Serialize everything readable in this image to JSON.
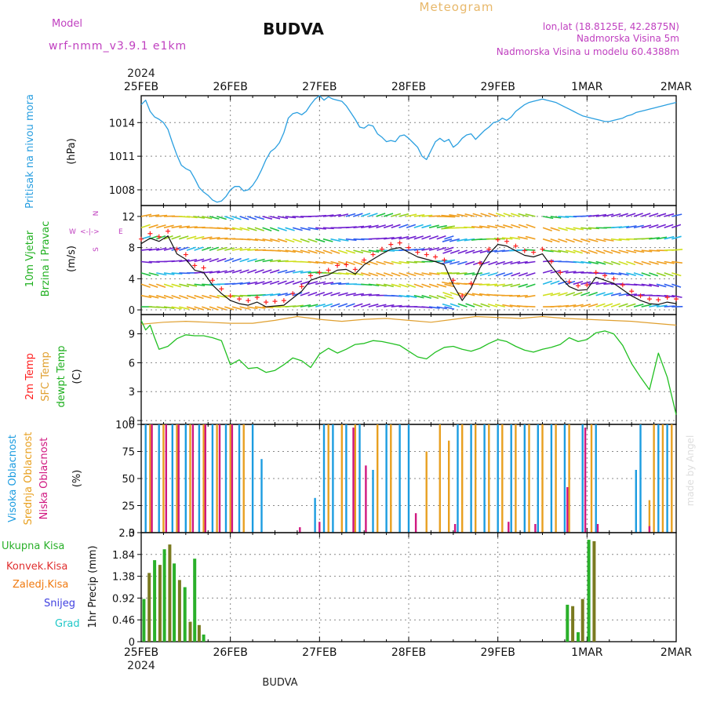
{
  "header": {
    "model_label": "Model",
    "model_name": "wrf-nmm_v3.9.1 e1km",
    "location": "BUDVA",
    "meteogram_label": "Meteogram",
    "coords": "lon,lat (18.8125E, 42.2875N)",
    "elevation": "Nadmorska Visina 5m",
    "model_elevation": "Nadmorska Visina u modelu 60.4388m",
    "footer_location": "BUDVA",
    "credit": "made by Angel"
  },
  "colors": {
    "pressure": "#2a9fe0",
    "sfc_temp": "#e0a030",
    "dew_temp": "#22c022",
    "temp2m": "#ff2020",
    "high_cloud": "#1c9ce0",
    "mid_cloud": "#e8a020",
    "low_cloud": "#d01880",
    "precip_total": "#2ab02a",
    "precip_conv": "#e03030",
    "precip_frozen": "#f07a10",
    "precip_snow": "#4040e0",
    "precip_grad": "#20c8c8",
    "model_label": "#c040c0",
    "meteogram_label": "#e8b86a",
    "header_info": "#c040c0"
  },
  "chart_data": [
    {
      "type": "line",
      "panel": "pressure",
      "ylabel_lines": [
        "Pritisak na nivou mora",
        "(hPa)"
      ],
      "yticks": [
        1008,
        1011,
        1014
      ],
      "ylim": [
        1006.6,
        1016.4
      ],
      "x_top_year": "2024",
      "x_top_labels": [
        "25FEB",
        "26FEB",
        "27FEB",
        "28FEB",
        "29FEB",
        "1MAR",
        "2MAR"
      ],
      "x_days": [
        0,
        6
      ],
      "series": [
        {
          "x": [
            0,
            0.05,
            0.1,
            0.15,
            0.2,
            0.25,
            0.3,
            0.35,
            0.4,
            0.45,
            0.5,
            0.55,
            0.6,
            0.65,
            0.7,
            0.75,
            0.8,
            0.85,
            0.9,
            0.95,
            1.0,
            1.05,
            1.1,
            1.15,
            1.2,
            1.25,
            1.3,
            1.35,
            1.4,
            1.45,
            1.5,
            1.55,
            1.6,
            1.65,
            1.7,
            1.75,
            1.8,
            1.85,
            1.9,
            1.95,
            2.0,
            2.05,
            2.1,
            2.15,
            2.2,
            2.25,
            2.3,
            2.35,
            2.4,
            2.45,
            2.5,
            2.55,
            2.6,
            2.65,
            2.7,
            2.75,
            2.8,
            2.85,
            2.9,
            2.95,
            3.0,
            3.05,
            3.1,
            3.15,
            3.2,
            3.25,
            3.3,
            3.35,
            3.4,
            3.45,
            3.5,
            3.55,
            3.6,
            3.65,
            3.7,
            3.75,
            3.8,
            3.85,
            3.9,
            3.95,
            4.0,
            4.05,
            4.1,
            4.15,
            4.2,
            4.25,
            4.3,
            4.35,
            4.4,
            4.45,
            4.5,
            4.55,
            4.6,
            4.65,
            4.7,
            4.75,
            4.8,
            4.85,
            4.9,
            4.95,
            5.0,
            5.05,
            5.1,
            5.15,
            5.2,
            5.25,
            5.3,
            5.35,
            5.4,
            5.45,
            5.5,
            5.55,
            5.6,
            5.65,
            5.7,
            5.75,
            5.8,
            5.85,
            5.9,
            5.95,
            6.0
          ],
          "values": [
            1015.6,
            1016.0,
            1015.0,
            1014.5,
            1014.3,
            1014.0,
            1013.4,
            1012.2,
            1011.1,
            1010.2,
            1009.9,
            1009.7,
            1009.0,
            1008.2,
            1007.8,
            1007.5,
            1007.1,
            1006.9,
            1007.0,
            1007.4,
            1008.0,
            1008.3,
            1008.3,
            1007.9,
            1008.0,
            1008.4,
            1009.0,
            1009.8,
            1010.7,
            1011.4,
            1011.7,
            1012.2,
            1013.1,
            1014.4,
            1014.8,
            1014.9,
            1014.7,
            1015.0,
            1015.6,
            1016.1,
            1016.4,
            1016.0,
            1016.3,
            1016.1,
            1016.0,
            1015.9,
            1015.5,
            1014.9,
            1014.3,
            1013.6,
            1013.5,
            1013.8,
            1013.7,
            1013.0,
            1012.7,
            1012.3,
            1012.4,
            1012.3,
            1012.8,
            1012.9,
            1012.6,
            1012.2,
            1011.8,
            1011.0,
            1010.7,
            1011.5,
            1012.3,
            1012.6,
            1012.3,
            1012.5,
            1011.8,
            1012.1,
            1012.6,
            1012.9,
            1013.0,
            1012.5,
            1012.9,
            1013.3,
            1013.6,
            1014.0,
            1014.1,
            1014.4,
            1014.2,
            1014.5,
            1015.0,
            1015.3,
            1015.6,
            1015.8,
            1015.9,
            1016.0,
            1016.1,
            1016.0,
            1015.9,
            1015.8,
            1015.6,
            1015.4,
            1015.2,
            1015.0,
            1014.8,
            1014.6,
            1014.5,
            1014.4,
            1014.3,
            1014.2,
            1014.1,
            1014.1,
            1014.2,
            1014.3,
            1014.4,
            1014.6,
            1014.7,
            1014.9,
            1015.0,
            1015.1,
            1015.2,
            1015.3,
            1015.4,
            1015.5,
            1015.6,
            1015.7,
            1015.8
          ]
        }
      ]
    },
    {
      "type": "line",
      "panel": "wind",
      "ylabel_lines": [
        "10m Vjetar",
        "Brzina i Pravac",
        "(m/s)"
      ],
      "compass": [
        "N",
        "S",
        "W",
        "E"
      ],
      "yticks": [
        0,
        4,
        8,
        12
      ],
      "ylim": [
        -0.6,
        13.4
      ],
      "series": [
        {
          "name": "speed",
          "x": [
            0,
            0.1,
            0.2,
            0.3,
            0.4,
            0.5,
            0.6,
            0.7,
            0.8,
            0.9,
            1.0,
            1.1,
            1.2,
            1.3,
            1.4,
            1.5,
            1.6,
            1.7,
            1.8,
            1.9,
            2.0,
            2.1,
            2.2,
            2.3,
            2.4,
            2.5,
            2.6,
            2.7,
            2.8,
            2.9,
            3.0,
            3.1,
            3.2,
            3.3,
            3.4,
            3.5,
            3.6,
            3.7,
            3.8,
            3.9,
            4.0,
            4.1,
            4.2,
            4.3,
            4.4,
            4.5,
            4.6,
            4.7,
            4.8,
            4.9,
            5.0,
            5.1,
            5.2,
            5.3,
            5.4,
            5.5,
            5.6,
            5.7,
            5.8,
            5.9,
            6.0
          ],
          "values": [
            8.5,
            9.2,
            8.8,
            9.5,
            7.2,
            6.5,
            5.1,
            4.8,
            3.2,
            2.1,
            1.2,
            0.8,
            0.6,
            1.0,
            0.4,
            0.5,
            0.6,
            1.5,
            2.4,
            3.8,
            4.2,
            4.5,
            5.1,
            5.2,
            4.6,
            5.8,
            6.5,
            7.2,
            7.8,
            8.0,
            7.4,
            6.8,
            6.5,
            6.2,
            5.8,
            3.2,
            1.2,
            2.8,
            5.4,
            7.2,
            8.4,
            8.2,
            7.6,
            7.0,
            6.8,
            7.2,
            5.6,
            4.2,
            3.0,
            2.5,
            2.6,
            4.2,
            3.8,
            3.4,
            2.6,
            1.8,
            1.2,
            0.8,
            0.7,
            1.0,
            0.8
          ]
        }
      ]
    },
    {
      "type": "line",
      "panel": "temperature",
      "ylabel_lines": [
        "2m Temp",
        "SFC Temp",
        "dewpt Temp",
        "(C)"
      ],
      "yticks": [
        0,
        3,
        6,
        9
      ],
      "ylim": [
        -0.4,
        11.0
      ],
      "series": [
        {
          "name": "SFC Temp",
          "x": [
            0,
            0.25,
            0.5,
            0.75,
            1.0,
            1.25,
            1.5,
            1.75,
            2.0,
            2.25,
            2.5,
            2.75,
            3.0,
            3.25,
            3.5,
            3.75,
            4.0,
            4.25,
            4.5,
            4.75,
            5.0,
            5.25,
            5.5,
            5.75,
            6.0
          ],
          "values": [
            10.0,
            10.2,
            10.3,
            10.2,
            10.1,
            10.1,
            10.4,
            10.8,
            10.5,
            10.3,
            10.5,
            10.6,
            10.4,
            10.2,
            10.5,
            10.8,
            10.7,
            10.6,
            10.8,
            10.6,
            10.5,
            10.4,
            10.3,
            10.1,
            9.9
          ]
        },
        {
          "name": "dewpt Temp",
          "x": [
            0,
            0.05,
            0.1,
            0.15,
            0.2,
            0.3,
            0.4,
            0.5,
            0.6,
            0.7,
            0.8,
            0.9,
            1.0,
            1.1,
            1.2,
            1.3,
            1.4,
            1.5,
            1.6,
            1.7,
            1.8,
            1.9,
            2.0,
            2.1,
            2.2,
            2.3,
            2.4,
            2.5,
            2.6,
            2.7,
            2.8,
            2.9,
            3.0,
            3.1,
            3.2,
            3.3,
            3.4,
            3.5,
            3.6,
            3.7,
            3.8,
            3.9,
            4.0,
            4.1,
            4.2,
            4.3,
            4.4,
            4.5,
            4.6,
            4.7,
            4.8,
            4.9,
            5.0,
            5.1,
            5.2,
            5.3,
            5.4,
            5.5,
            5.6,
            5.7,
            5.8,
            5.9,
            6.0
          ],
          "values": [
            10.4,
            9.4,
            9.9,
            8.6,
            7.4,
            7.7,
            8.5,
            8.9,
            8.8,
            8.8,
            8.6,
            8.3,
            5.8,
            6.3,
            5.4,
            5.5,
            5.0,
            5.2,
            5.8,
            6.5,
            6.2,
            5.5,
            6.9,
            7.5,
            7.0,
            7.4,
            7.9,
            8.0,
            8.3,
            8.2,
            8.0,
            7.8,
            7.2,
            6.6,
            6.4,
            7.1,
            7.6,
            7.7,
            7.4,
            7.2,
            7.5,
            8.0,
            8.4,
            8.2,
            7.7,
            7.3,
            7.1,
            7.4,
            7.6,
            7.9,
            8.6,
            8.2,
            8.4,
            9.1,
            9.3,
            9.0,
            7.8,
            5.9,
            4.5,
            3.2,
            7.0,
            4.5,
            0.6
          ]
        }
      ]
    },
    {
      "type": "bar",
      "panel": "cloud",
      "ylabel_lines": [
        "Visoka Oblacnost",
        "Srednja Oblacnost",
        "Niska Oblacnost",
        "(%)"
      ],
      "yticks": [
        0,
        25,
        50,
        75,
        100
      ],
      "ylim": [
        0,
        100
      ],
      "series": [
        {
          "name": "Visoka Oblacnost",
          "x": [
            0.05,
            0.2,
            0.35,
            0.5,
            0.65,
            0.8,
            0.95,
            1.1,
            1.25,
            1.35,
            1.95,
            2.05,
            2.15,
            2.3,
            2.45,
            2.6,
            2.75,
            2.9,
            3.0,
            3.55,
            3.7,
            3.85,
            4.0,
            4.15,
            4.3,
            4.45,
            4.6,
            4.75,
            4.95,
            5.1,
            5.55,
            5.6,
            5.8,
            5.9
          ],
          "values": [
            100,
            100,
            100,
            100,
            100,
            100,
            100,
            100,
            100,
            68,
            32,
            100,
            100,
            100,
            100,
            58,
            100,
            100,
            100,
            100,
            100,
            100,
            100,
            100,
            100,
            100,
            100,
            100,
            100,
            100,
            58,
            100,
            100,
            100
          ]
        },
        {
          "name": "Srednja Oblacnost",
          "x": [
            0.1,
            0.25,
            0.4,
            0.55,
            0.7,
            0.85,
            1.0,
            1.15,
            2.1,
            2.25,
            2.4,
            2.65,
            2.8,
            3.2,
            3.35,
            3.45,
            3.6,
            3.75,
            3.9,
            4.05,
            4.2,
            4.35,
            4.5,
            4.65,
            4.8,
            5.05,
            5.7,
            5.75,
            5.85,
            5.95
          ],
          "values": [
            100,
            100,
            100,
            100,
            100,
            100,
            100,
            100,
            100,
            100,
            100,
            100,
            100,
            75,
            100,
            85,
            100,
            100,
            100,
            100,
            100,
            100,
            100,
            100,
            100,
            100,
            30,
            100,
            100,
            100
          ]
        },
        {
          "name": "Niska Oblacnost",
          "x": [
            0.12,
            0.28,
            0.42,
            0.58,
            0.72,
            0.88,
            1.02,
            1.78,
            2.0,
            2.38,
            2.52,
            3.08,
            3.52,
            4.12,
            4.42,
            4.78,
            4.98,
            5.12,
            5.7
          ],
          "values": [
            100,
            100,
            100,
            100,
            100,
            100,
            100,
            5,
            10,
            97,
            62,
            18,
            8,
            10,
            8,
            42,
            97,
            8,
            6
          ]
        }
      ]
    },
    {
      "type": "bar",
      "panel": "precip",
      "ylabel_lines": [
        "1hr Precip (mm)"
      ],
      "legend": [
        "Ukupna Kisa",
        "Konvek.Kisa",
        "Zaledj.Kisa",
        "Snijeg",
        "Grad"
      ],
      "yticks": [
        0,
        0.46,
        0.92,
        1.38,
        1.84,
        2.3
      ],
      "ylim": [
        0,
        2.3
      ],
      "x_bottom_labels": [
        "25FEB",
        "26FEB",
        "27FEB",
        "28FEB",
        "29FEB",
        "1MAR",
        "2MAR"
      ],
      "x_bottom_year": "2024",
      "series": [
        {
          "name": "Ukupna Kisa",
          "x": [
            0.03,
            0.09,
            0.15,
            0.21,
            0.26,
            0.32,
            0.37,
            0.43,
            0.49,
            0.55,
            0.6,
            0.65,
            0.7
          ],
          "values": [
            0.9,
            1.45,
            1.72,
            1.62,
            1.95,
            2.05,
            1.65,
            1.3,
            1.15,
            0.42,
            1.75,
            0.35,
            0.15
          ]
        },
        {
          "name": "Ukupna Kisa",
          "x": [
            4.78,
            4.84,
            4.9,
            4.95,
            5.02,
            5.08
          ],
          "values": [
            0.78,
            0.75,
            0.2,
            0.9,
            2.15,
            2.12
          ]
        }
      ]
    }
  ]
}
